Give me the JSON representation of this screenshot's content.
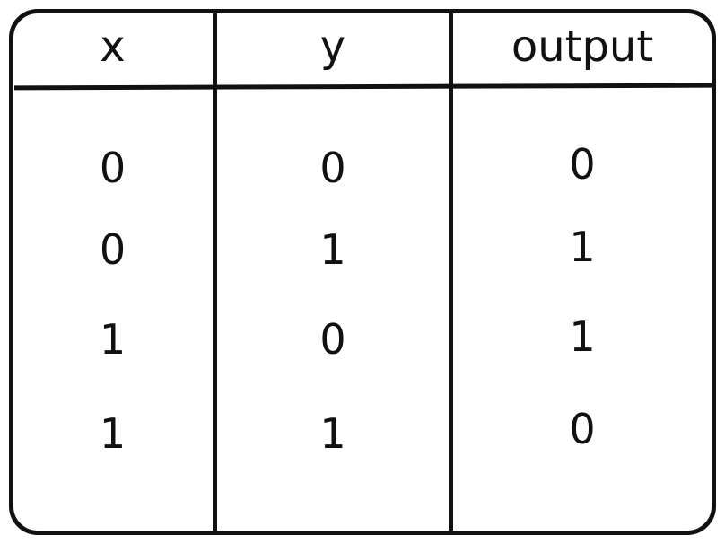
{
  "table": {
    "headers": [
      "x",
      "y",
      "output"
    ],
    "rows": [
      [
        "0",
        "0",
        "0"
      ],
      [
        "0",
        "1",
        "1"
      ],
      [
        "1",
        "0",
        "1"
      ],
      [
        "1",
        "1",
        "0"
      ]
    ]
  }
}
